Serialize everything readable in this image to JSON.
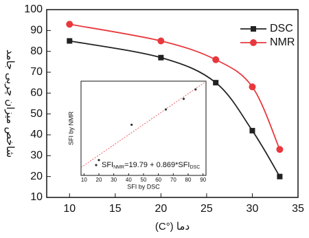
{
  "chart_data": [
    {
      "type": "line",
      "x_label": "دما (°C)",
      "y_label": "شاخص میزان چربی جامد",
      "xlim": [
        7.5,
        35
      ],
      "xticks": [
        10,
        15,
        20,
        25,
        30,
        35
      ],
      "ylim": [
        10,
        100
      ],
      "yticks": [
        10,
        20,
        30,
        40,
        50,
        60,
        70,
        80,
        90,
        100
      ],
      "legend": "top-right",
      "series": [
        {
          "name": "DSC",
          "color": "#222222",
          "marker": "square",
          "x": [
            10,
            20,
            26,
            30,
            33
          ],
          "values": [
            85,
            77,
            65,
            42,
            20
          ]
        },
        {
          "name": "NMR",
          "color": "#e8383d",
          "marker": "circle",
          "x": [
            10,
            20,
            26,
            30,
            33
          ],
          "values": [
            93,
            85,
            76,
            63,
            33
          ]
        }
      ]
    },
    {
      "type": "scatter",
      "x_label": "SFI by DSC",
      "y_label": "SFI by NMR",
      "xlim": [
        8,
        92
      ],
      "xticks": [
        10,
        20,
        30,
        40,
        50,
        60,
        70,
        80,
        90
      ],
      "ylim": [
        20,
        100
      ],
      "equation": [
        "SFI",
        "NMR",
        "=19.79 + 0.869*SFI",
        "DSC"
      ],
      "fit": {
        "intercept": 19.79,
        "slope": 0.869
      },
      "x": [
        20,
        42,
        65,
        77,
        85
      ],
      "values": [
        33,
        63,
        76,
        85,
        93
      ]
    }
  ]
}
